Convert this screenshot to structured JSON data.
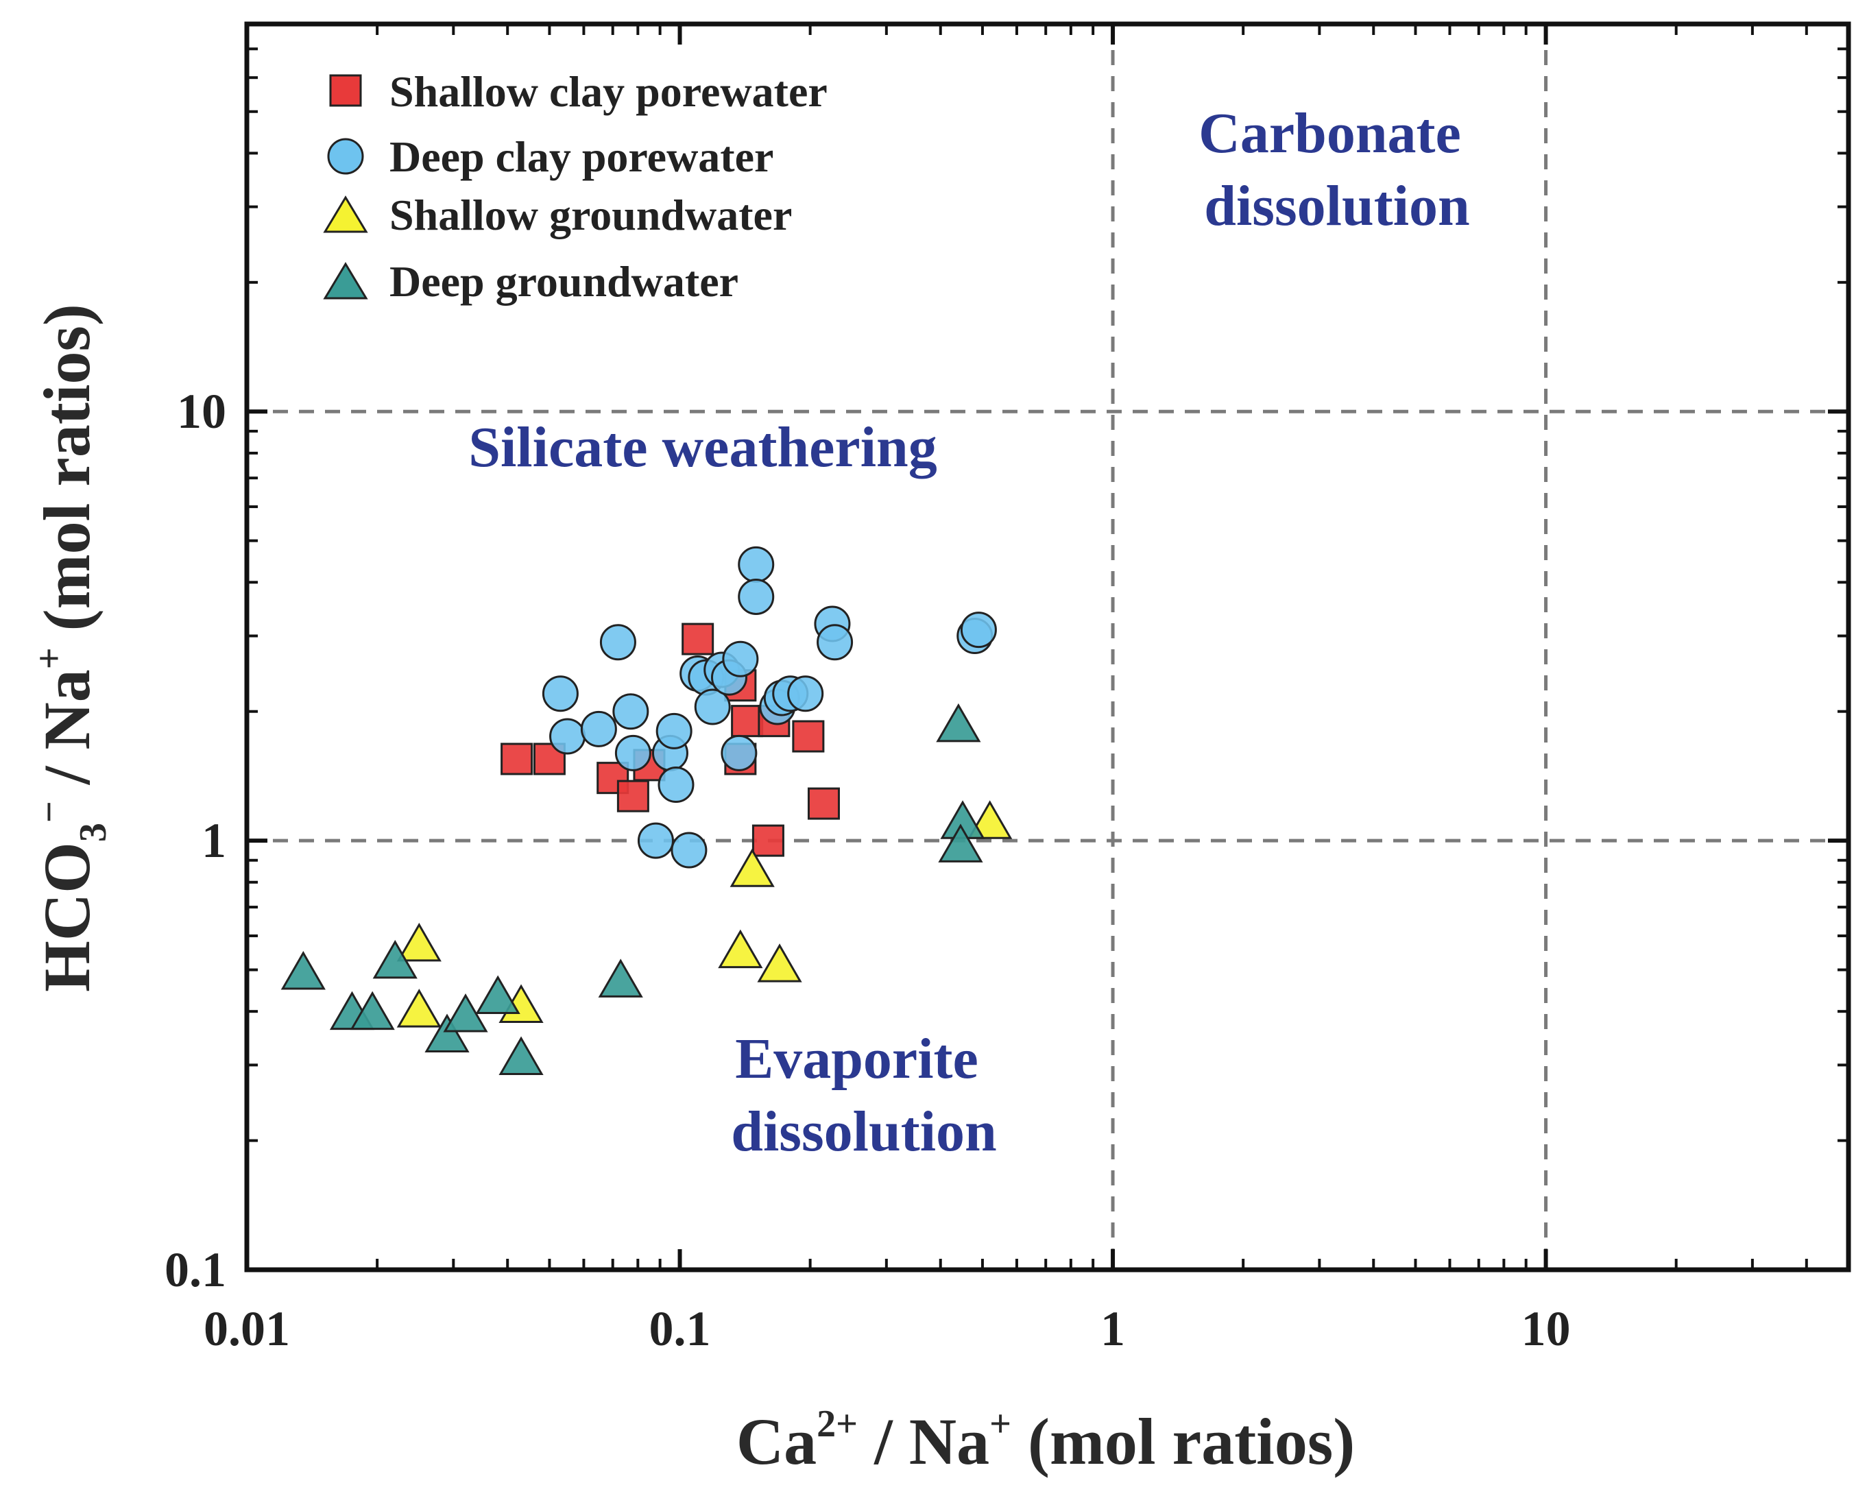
{
  "chart_data": {
    "type": "scatter",
    "xscale": "log",
    "yscale": "log",
    "xlim": [
      0.01,
      50
    ],
    "ylim": [
      0.1,
      80
    ],
    "xlabel": {
      "base": "Ca",
      "sup1": "2+",
      "mid": " / Na",
      "sup2": "+",
      "tail": " (mol ratios)"
    },
    "ylabel": {
      "base": "HCO",
      "sub": "3",
      "sup1": "−",
      "mid": " / Na",
      "sup2": "+",
      "tail": " (mol ratios)"
    },
    "xticks": [
      {
        "value": 0.01,
        "label": "0.01"
      },
      {
        "value": 0.1,
        "label": "0.1"
      },
      {
        "value": 1,
        "label": "1"
      },
      {
        "value": 10,
        "label": "10"
      }
    ],
    "yticks": [
      {
        "value": 0.1,
        "label": "0.1"
      },
      {
        "value": 1,
        "label": "1"
      },
      {
        "value": 10,
        "label": "10"
      }
    ],
    "reference_lines": {
      "x": [
        1,
        10
      ],
      "y": [
        1,
        10
      ]
    },
    "regions": [
      {
        "lines": [
          "Carbonate",
          "dissolution"
        ]
      },
      {
        "lines": [
          "Silicate weathering"
        ]
      },
      {
        "lines": [
          "Evaporite",
          "dissolution"
        ]
      }
    ],
    "series": [
      {
        "name": "Shallow clay porewater",
        "marker": "square",
        "color": "#e83a3a",
        "points": [
          [
            0.042,
            1.55
          ],
          [
            0.05,
            1.55
          ],
          [
            0.07,
            1.4
          ],
          [
            0.078,
            1.27
          ],
          [
            0.085,
            1.5
          ],
          [
            0.11,
            2.95
          ],
          [
            0.138,
            2.3
          ],
          [
            0.138,
            1.55
          ],
          [
            0.143,
            1.9
          ],
          [
            0.165,
            1.9
          ],
          [
            0.16,
            1.0
          ],
          [
            0.198,
            1.75
          ],
          [
            0.215,
            1.22
          ]
        ]
      },
      {
        "name": "Deep clay porewater",
        "marker": "circle",
        "color": "#6ec3ef",
        "points": [
          [
            0.053,
            2.2
          ],
          [
            0.055,
            1.75
          ],
          [
            0.065,
            1.82
          ],
          [
            0.072,
            2.9
          ],
          [
            0.077,
            2.0
          ],
          [
            0.078,
            1.6
          ],
          [
            0.088,
            1.0
          ],
          [
            0.095,
            1.6
          ],
          [
            0.097,
            1.8
          ],
          [
            0.098,
            1.35
          ],
          [
            0.105,
            0.95
          ],
          [
            0.11,
            2.45
          ],
          [
            0.115,
            2.4
          ],
          [
            0.119,
            2.05
          ],
          [
            0.125,
            2.5
          ],
          [
            0.13,
            2.4
          ],
          [
            0.138,
            2.65
          ],
          [
            0.137,
            1.6
          ],
          [
            0.15,
            4.4
          ],
          [
            0.15,
            3.7
          ],
          [
            0.168,
            2.05
          ],
          [
            0.172,
            2.15
          ],
          [
            0.18,
            2.2
          ],
          [
            0.195,
            2.2
          ],
          [
            0.225,
            3.2
          ],
          [
            0.228,
            2.9
          ],
          [
            0.48,
            3.0
          ],
          [
            0.49,
            3.1
          ]
        ]
      },
      {
        "name": "Shallow groundwater",
        "marker": "triangle",
        "color": "#f5f231",
        "points": [
          [
            0.025,
            0.57
          ],
          [
            0.025,
            0.4
          ],
          [
            0.043,
            0.41
          ],
          [
            0.138,
            0.55
          ],
          [
            0.147,
            0.85
          ],
          [
            0.17,
            0.51
          ],
          [
            0.52,
            1.1
          ]
        ]
      },
      {
        "name": "Deep groundwater",
        "marker": "triangle",
        "color": "#3a9c96",
        "points": [
          [
            0.0135,
            0.49
          ],
          [
            0.0175,
            0.395
          ],
          [
            0.0195,
            0.395
          ],
          [
            0.022,
            0.52
          ],
          [
            0.029,
            0.35
          ],
          [
            0.032,
            0.39
          ],
          [
            0.038,
            0.43
          ],
          [
            0.043,
            0.31
          ],
          [
            0.073,
            0.47
          ],
          [
            0.44,
            1.85
          ],
          [
            0.45,
            1.1
          ],
          [
            0.445,
            0.97
          ]
        ]
      }
    ]
  }
}
